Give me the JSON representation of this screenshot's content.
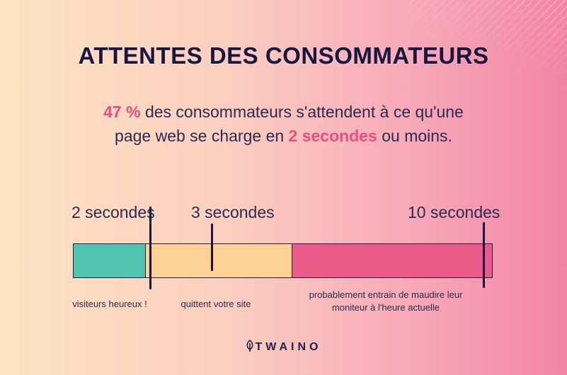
{
  "title": "ATTENTES DES CONSOMMATEURS",
  "subtitle": {
    "stat": "47 %",
    "part1": " des consommateurs s'attendent à ce qu'une",
    "part2": "page web se charge en ",
    "highlight": "2 secondes",
    "part3": " ou moins."
  },
  "timeline": {
    "markers": [
      {
        "label": "2 secondes"
      },
      {
        "label": "3 secondes"
      },
      {
        "label": "10 secondes"
      }
    ],
    "segments": [
      {
        "label": "visiteurs heureux !",
        "color": "#4fc4b0"
      },
      {
        "label": "quittent votre site",
        "color": "#fdd094"
      },
      {
        "label_line1": "probablement entrain de maudire leur",
        "label_line2": "moniteur à l'heure actuelle",
        "color": "#eb5a88"
      }
    ]
  },
  "brand": {
    "name": "TWAINO",
    "icon": "leaf-icon"
  },
  "colors": {
    "accent": "#ea4f80",
    "title": "#16163f"
  }
}
